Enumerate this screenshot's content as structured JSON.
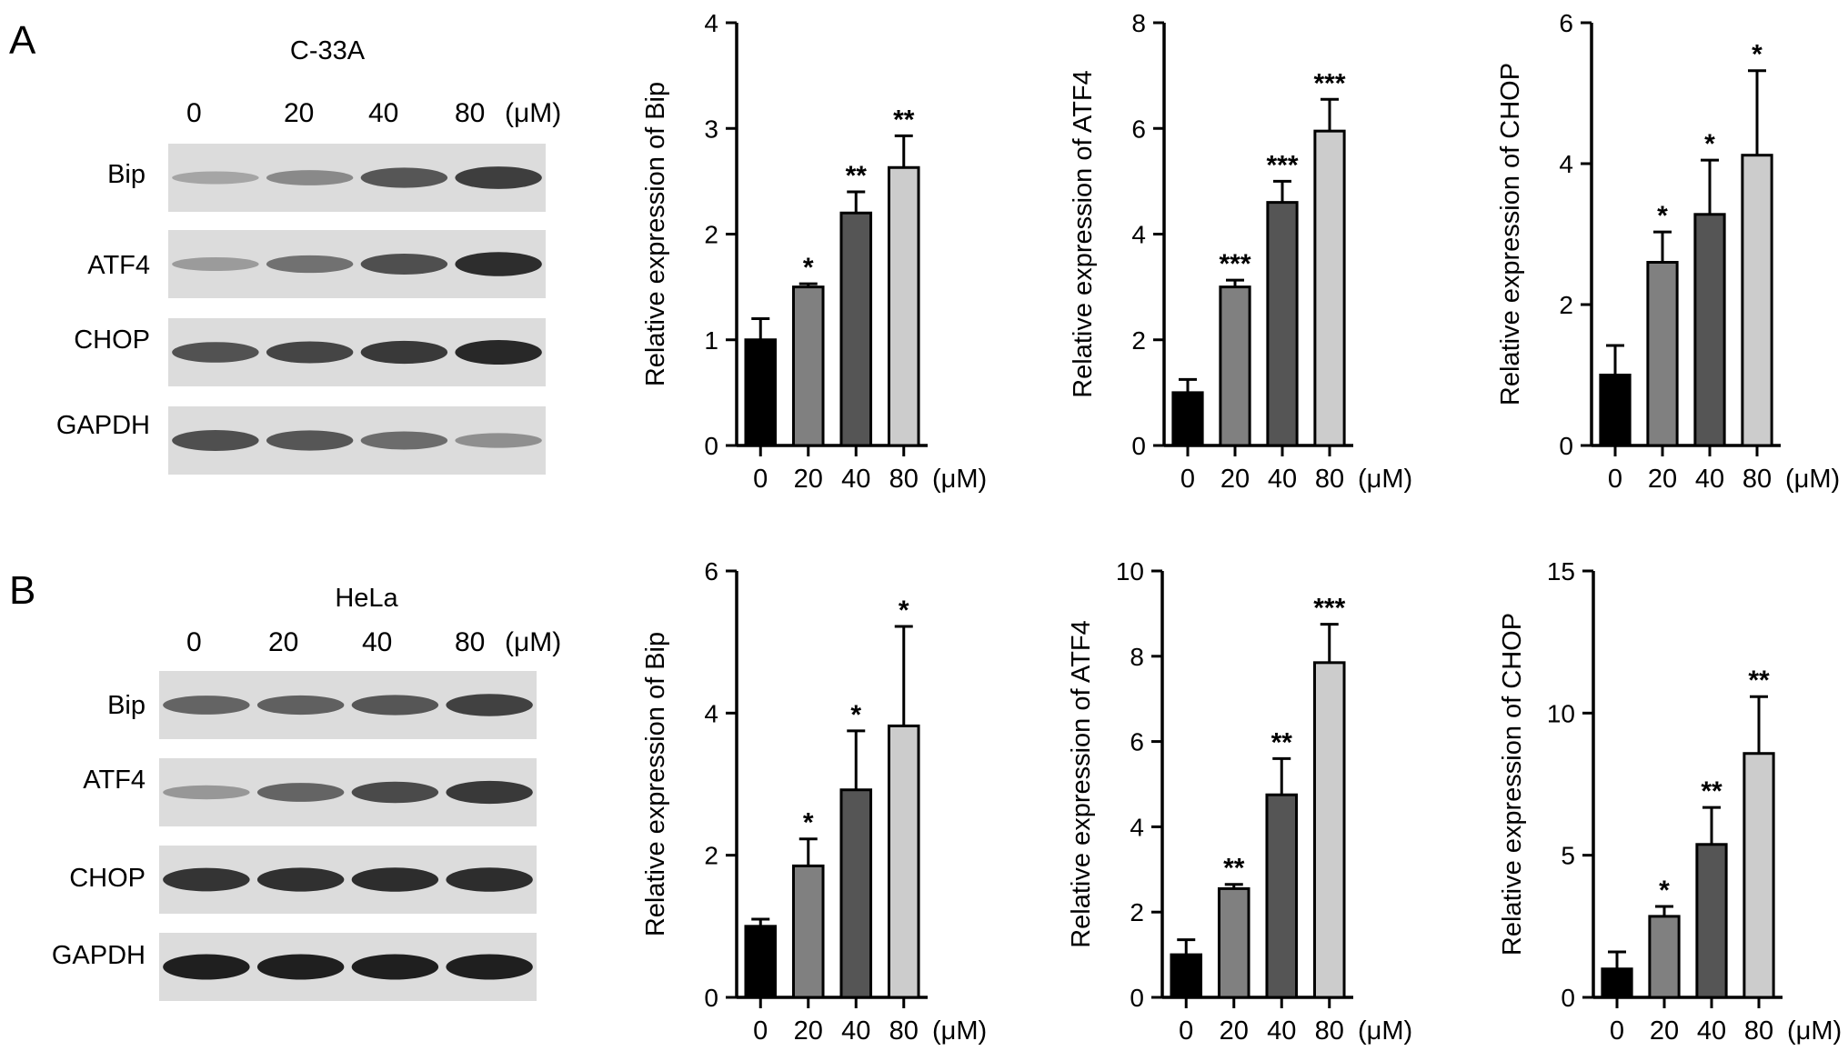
{
  "panels": [
    {
      "letter": "A",
      "cell_line": "C-33A",
      "lanes": [
        "0",
        "20",
        "40",
        "80"
      ],
      "unit": "(μM)",
      "bands": [
        {
          "label": "Bip",
          "intensities": [
            0.22,
            0.38,
            0.68,
            0.82
          ]
        },
        {
          "label": "ATF4",
          "intensities": [
            0.28,
            0.52,
            0.72,
            0.92
          ]
        },
        {
          "label": "CHOP",
          "intensities": [
            0.7,
            0.78,
            0.85,
            0.95
          ]
        },
        {
          "label": "GAPDH",
          "intensities": [
            0.72,
            0.68,
            0.55,
            0.35
          ]
        }
      ]
    },
    {
      "letter": "B",
      "cell_line": "HeLa",
      "lanes": [
        "0",
        "20",
        "40",
        "80"
      ],
      "unit": "(μM)",
      "bands": [
        {
          "label": "Bip",
          "intensities": [
            0.6,
            0.62,
            0.68,
            0.8
          ]
        },
        {
          "label": "ATF4",
          "intensities": [
            0.3,
            0.6,
            0.75,
            0.85
          ]
        },
        {
          "label": "CHOP",
          "intensities": [
            0.88,
            0.9,
            0.92,
            0.92
          ]
        },
        {
          "label": "GAPDH",
          "intensities": [
            1.0,
            1.0,
            1.0,
            1.0
          ]
        }
      ]
    }
  ],
  "bar_colors": [
    "#000000",
    "#808080",
    "#555555",
    "#cccccc"
  ],
  "chart_data": [
    {
      "type": "bar",
      "panel": "A",
      "ylabel": "Relative expression of Bip",
      "categories": [
        "0",
        "20",
        "40",
        "80"
      ],
      "unit": "(μM)",
      "ylim": [
        0,
        4
      ],
      "yticks": [
        "0",
        "1",
        "2",
        "3",
        "4"
      ],
      "values": [
        1.0,
        1.5,
        2.2,
        2.63
      ],
      "errors": [
        0.2,
        0.03,
        0.2,
        0.3
      ],
      "significance": [
        "",
        "*",
        "**",
        "**"
      ]
    },
    {
      "type": "bar",
      "panel": "A",
      "ylabel": "Relative expression of ATF4",
      "categories": [
        "0",
        "20",
        "40",
        "80"
      ],
      "unit": "(μM)",
      "ylim": [
        0,
        8
      ],
      "yticks": [
        "0",
        "2",
        "4",
        "6",
        "8"
      ],
      "values": [
        1.0,
        3.0,
        4.6,
        5.95
      ],
      "errors": [
        0.25,
        0.13,
        0.4,
        0.6
      ],
      "significance": [
        "",
        "***",
        "***",
        "***"
      ]
    },
    {
      "type": "bar",
      "panel": "A",
      "ylabel": "Relative expression of CHOP",
      "categories": [
        "0",
        "20",
        "40",
        "80"
      ],
      "unit": "(μM)",
      "ylim": [
        0,
        6
      ],
      "yticks": [
        "0",
        "2",
        "4",
        "6"
      ],
      "values": [
        1.0,
        2.6,
        3.28,
        4.12
      ],
      "errors": [
        0.42,
        0.43,
        0.77,
        1.2
      ],
      "significance": [
        "",
        "*",
        "*",
        "*"
      ]
    },
    {
      "type": "bar",
      "panel": "B",
      "ylabel": "Relative expression of Bip",
      "categories": [
        "0",
        "20",
        "40",
        "80"
      ],
      "unit": "(μM)",
      "ylim": [
        0,
        6
      ],
      "yticks": [
        "0",
        "2",
        "4",
        "6"
      ],
      "values": [
        1.0,
        1.85,
        2.92,
        3.82
      ],
      "errors": [
        0.1,
        0.38,
        0.83,
        1.4
      ],
      "significance": [
        "",
        "*",
        "*",
        "*"
      ]
    },
    {
      "type": "bar",
      "panel": "B",
      "ylabel": "Relative expression of ATF4",
      "categories": [
        "0",
        "20",
        "40",
        "80"
      ],
      "unit": "(μM)",
      "ylim": [
        0,
        10
      ],
      "yticks": [
        "0",
        "2",
        "4",
        "6",
        "8",
        "10"
      ],
      "values": [
        1.0,
        2.55,
        4.75,
        7.85
      ],
      "errors": [
        0.35,
        0.1,
        0.85,
        0.9
      ],
      "significance": [
        "",
        "**",
        "**",
        "***"
      ]
    },
    {
      "type": "bar",
      "panel": "B",
      "ylabel": "Relative expression of CHOP",
      "categories": [
        "0",
        "20",
        "40",
        "80"
      ],
      "unit": "(μM)",
      "ylim": [
        0,
        15
      ],
      "yticks": [
        "0",
        "5",
        "10",
        "15"
      ],
      "values": [
        1.0,
        2.85,
        5.38,
        8.58
      ],
      "errors": [
        0.6,
        0.35,
        1.3,
        2.0
      ],
      "significance": [
        "",
        "*",
        "**",
        "**"
      ]
    }
  ]
}
